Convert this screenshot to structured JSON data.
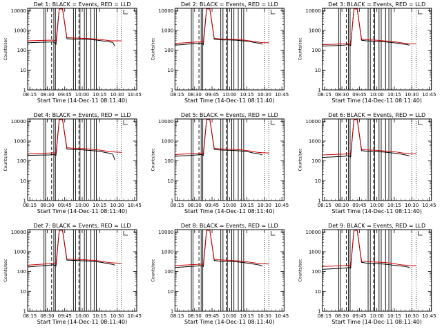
{
  "figure": {
    "background": "#ffffff",
    "colors": {
      "events": "#000000",
      "lld": "#cc0000",
      "axis": "#000000"
    }
  },
  "chart_data": [
    {
      "type": "line",
      "title": "Det 1: BLACK = Events, RED = LLD",
      "xlabel": "Start Time (14-Dec-11 08:11:40)",
      "ylabel": "Counts/sec",
      "x_ticks": [
        "08:15",
        "08:30",
        "09:45",
        "10:00",
        "10:15",
        "10:30",
        "10:45"
      ],
      "y_ticks": [
        "1",
        "10",
        "100",
        "1000",
        "10000"
      ],
      "ylim": [
        1,
        13000
      ],
      "y_scale": "log",
      "grid": false,
      "series": [
        {
          "name": "Events",
          "color": "#000000",
          "x": [
            0,
            20,
            24,
            26,
            29,
            32,
            36,
            40,
            44,
            50,
            56,
            62,
            68,
            72,
            76,
            78,
            80
          ],
          "y": [
            240,
            260,
            260,
            200,
            12000,
            12000,
            380,
            370,
            360,
            360,
            350,
            330,
            300,
            280,
            260,
            250,
            160
          ]
        },
        {
          "name": "LLD",
          "color": "#cc0000",
          "x": [
            0,
            20,
            24,
            26,
            29,
            32,
            36,
            40,
            44,
            50,
            56,
            62,
            68,
            72,
            76,
            80,
            86
          ],
          "y": [
            300,
            320,
            320,
            280,
            12000,
            12000,
            430,
            420,
            410,
            400,
            390,
            370,
            340,
            320,
            300,
            300,
            300
          ]
        }
      ]
    },
    {
      "type": "line",
      "title": "Det 2: BLACK = Events, RED = LLD",
      "xlabel": "Start Time (14-Dec-11 08:11:40)",
      "ylabel": "Counts/sec",
      "x_ticks": [
        "08:15",
        "08:30",
        "09:45",
        "10:00",
        "10:15",
        "10:30",
        "10:45"
      ],
      "y_ticks": [
        "1",
        "10",
        "100",
        "1000",
        "10000"
      ],
      "ylim": [
        1,
        13000
      ],
      "y_scale": "log",
      "grid": false,
      "series": [
        {
          "name": "Events",
          "color": "#000000",
          "x": [
            0,
            20,
            24,
            26,
            29,
            32,
            36,
            40,
            44,
            50,
            56,
            62,
            68,
            72,
            76,
            78,
            80
          ],
          "y": [
            180,
            220,
            230,
            190,
            12000,
            12000,
            360,
            340,
            330,
            330,
            320,
            300,
            280,
            250,
            230,
            220,
            200
          ]
        },
        {
          "name": "LLD",
          "color": "#cc0000",
          "x": [
            0,
            20,
            24,
            26,
            29,
            32,
            36,
            40,
            44,
            50,
            56,
            62,
            68,
            72,
            76,
            80,
            86
          ],
          "y": [
            220,
            260,
            270,
            250,
            12000,
            12000,
            400,
            380,
            370,
            360,
            350,
            330,
            300,
            280,
            260,
            240,
            240
          ]
        }
      ]
    },
    {
      "type": "line",
      "title": "Det 3: BLACK = Events, RED = LLD",
      "xlabel": "Start Time (14-Dec-11 08:11:40)",
      "ylabel": "Counts/sec",
      "x_ticks": [
        "08:15",
        "08:30",
        "09:45",
        "10:00",
        "10:15",
        "10:30",
        "10:45"
      ],
      "y_ticks": [
        "1",
        "10",
        "100",
        "1000",
        "10000"
      ],
      "ylim": [
        1,
        13000
      ],
      "y_scale": "log",
      "grid": false,
      "series": [
        {
          "name": "Events",
          "color": "#000000",
          "x": [
            0,
            20,
            24,
            26,
            29,
            32,
            36,
            40,
            44,
            50,
            56,
            62,
            68,
            72,
            76,
            78,
            80
          ],
          "y": [
            160,
            180,
            190,
            170,
            12000,
            12000,
            320,
            300,
            290,
            280,
            270,
            250,
            230,
            210,
            200,
            190,
            180
          ]
        },
        {
          "name": "LLD",
          "color": "#cc0000",
          "x": [
            0,
            20,
            24,
            26,
            29,
            32,
            36,
            40,
            44,
            50,
            56,
            62,
            68,
            72,
            76,
            80,
            86
          ],
          "y": [
            190,
            210,
            220,
            200,
            12000,
            12000,
            360,
            340,
            330,
            320,
            300,
            280,
            260,
            240,
            220,
            210,
            210
          ]
        }
      ]
    },
    {
      "type": "line",
      "title": "Det 4: BLACK = Events, RED = LLD",
      "xlabel": "Start Time (14-Dec-11 08:11:40)",
      "ylabel": "Counts/sec",
      "x_ticks": [
        "08:15",
        "08:30",
        "09:45",
        "10:00",
        "10:15",
        "10:30",
        "10:45"
      ],
      "y_ticks": [
        "1",
        "10",
        "100",
        "1000",
        "10000"
      ],
      "ylim": [
        1,
        13000
      ],
      "y_scale": "log",
      "grid": false,
      "series": [
        {
          "name": "Events",
          "color": "#000000",
          "x": [
            0,
            20,
            24,
            26,
            29,
            32,
            36,
            40,
            44,
            50,
            56,
            62,
            68,
            72,
            76,
            78,
            80
          ],
          "y": [
            190,
            200,
            210,
            190,
            12000,
            12000,
            400,
            380,
            370,
            360,
            340,
            320,
            290,
            260,
            240,
            220,
            110
          ]
        },
        {
          "name": "LLD",
          "color": "#cc0000",
          "x": [
            0,
            20,
            24,
            26,
            29,
            32,
            36,
            40,
            44,
            50,
            56,
            62,
            68,
            72,
            76,
            80,
            86
          ],
          "y": [
            230,
            250,
            260,
            240,
            12000,
            12000,
            460,
            440,
            430,
            420,
            400,
            370,
            340,
            310,
            290,
            280,
            270
          ]
        }
      ]
    },
    {
      "type": "line",
      "title": "Det 5: BLACK = Events, RED = LLD",
      "xlabel": "Start Time (14-Dec-11 08:11:40)",
      "ylabel": "Counts/sec",
      "x_ticks": [
        "08:15",
        "08:30",
        "09:45",
        "10:00",
        "10:15",
        "10:30",
        "10:45"
      ],
      "y_ticks": [
        "1",
        "10",
        "100",
        "1000",
        "10000"
      ],
      "ylim": [
        1,
        13000
      ],
      "y_scale": "log",
      "grid": false,
      "series": [
        {
          "name": "Events",
          "color": "#000000",
          "x": [
            0,
            20,
            24,
            26,
            29,
            32,
            36,
            40,
            44,
            50,
            56,
            62,
            68,
            72,
            76,
            78,
            80
          ],
          "y": [
            170,
            200,
            210,
            190,
            12000,
            12000,
            380,
            360,
            350,
            340,
            330,
            310,
            280,
            250,
            230,
            220,
            200
          ]
        },
        {
          "name": "LLD",
          "color": "#cc0000",
          "x": [
            0,
            20,
            24,
            26,
            29,
            32,
            36,
            40,
            44,
            50,
            56,
            62,
            68,
            72,
            76,
            80,
            86
          ],
          "y": [
            210,
            240,
            250,
            230,
            12000,
            12000,
            430,
            410,
            400,
            390,
            380,
            350,
            320,
            290,
            270,
            260,
            250
          ]
        }
      ]
    },
    {
      "type": "line",
      "title": "Det 6: BLACK = Events, RED = LLD",
      "xlabel": "Start Time (14-Dec-11 08:11:40)",
      "ylabel": "Counts/sec",
      "x_ticks": [
        "08:15",
        "08:30",
        "09:45",
        "10:00",
        "10:15",
        "10:30",
        "10:45"
      ],
      "y_ticks": [
        "1",
        "10",
        "100",
        "1000",
        "10000"
      ],
      "ylim": [
        1,
        13000
      ],
      "y_scale": "log",
      "grid": false,
      "series": [
        {
          "name": "Events",
          "color": "#000000",
          "x": [
            0,
            20,
            24,
            26,
            29,
            32,
            36,
            40,
            44,
            50,
            56,
            62,
            68,
            72,
            76,
            78,
            80
          ],
          "y": [
            150,
            170,
            180,
            160,
            12000,
            12000,
            330,
            310,
            300,
            290,
            280,
            260,
            240,
            220,
            200,
            190,
            180
          ]
        },
        {
          "name": "LLD",
          "color": "#cc0000",
          "x": [
            0,
            20,
            24,
            26,
            29,
            32,
            36,
            40,
            44,
            50,
            56,
            62,
            68,
            72,
            76,
            80,
            86
          ],
          "y": [
            200,
            220,
            230,
            210,
            12000,
            12000,
            380,
            360,
            350,
            340,
            320,
            300,
            280,
            260,
            240,
            230,
            230
          ]
        }
      ]
    },
    {
      "type": "line",
      "title": "Det 7: BLACK = Events, RED = LLD",
      "xlabel": "Start Time (14-Dec-11 08:11:40)",
      "ylabel": "Counts/sec",
      "x_ticks": [
        "08:15",
        "08:30",
        "09:45",
        "10:00",
        "10:15",
        "10:30",
        "10:45"
      ],
      "y_ticks": [
        "1",
        "10",
        "100",
        "1000",
        "10000"
      ],
      "ylim": [
        1,
        13000
      ],
      "y_scale": "log",
      "grid": false,
      "series": [
        {
          "name": "Events",
          "color": "#000000",
          "x": [
            0,
            20,
            24,
            26,
            29,
            32,
            36,
            40,
            44,
            50,
            56,
            62,
            68,
            72,
            76,
            78,
            80
          ],
          "y": [
            170,
            210,
            220,
            190,
            12000,
            12000,
            380,
            370,
            360,
            350,
            340,
            320,
            290,
            260,
            240,
            230,
            210
          ]
        },
        {
          "name": "LLD",
          "color": "#cc0000",
          "x": [
            0,
            20,
            24,
            26,
            29,
            32,
            36,
            40,
            44,
            50,
            56,
            62,
            68,
            72,
            76,
            80,
            86
          ],
          "y": [
            210,
            250,
            260,
            240,
            12000,
            12000,
            430,
            420,
            410,
            400,
            380,
            360,
            330,
            300,
            280,
            270,
            260
          ]
        }
      ]
    },
    {
      "type": "line",
      "title": "Det 8: BLACK = Events, RED = LLD",
      "xlabel": "Start Time (14-Dec-11 08:11:40)",
      "ylabel": "Counts/sec",
      "x_ticks": [
        "08:15",
        "08:30",
        "09:45",
        "10:00",
        "10:15",
        "10:30",
        "10:45"
      ],
      "y_ticks": [
        "1",
        "10",
        "100",
        "1000",
        "10000"
      ],
      "ylim": [
        1,
        13000
      ],
      "y_scale": "log",
      "grid": false,
      "series": [
        {
          "name": "Events",
          "color": "#000000",
          "x": [
            0,
            20,
            24,
            26,
            29,
            32,
            36,
            40,
            44,
            50,
            56,
            62,
            68,
            72,
            76,
            78,
            80
          ],
          "y": [
            160,
            190,
            200,
            180,
            12000,
            12000,
            360,
            340,
            330,
            320,
            310,
            290,
            260,
            240,
            220,
            210,
            190
          ]
        },
        {
          "name": "LLD",
          "color": "#cc0000",
          "x": [
            0,
            20,
            24,
            26,
            29,
            32,
            36,
            40,
            44,
            50,
            56,
            62,
            68,
            72,
            76,
            80,
            86
          ],
          "y": [
            200,
            230,
            240,
            220,
            12000,
            12000,
            410,
            390,
            380,
            370,
            350,
            330,
            300,
            280,
            260,
            250,
            240
          ]
        }
      ]
    },
    {
      "type": "line",
      "title": "Det 9: BLACK = Events, RED = LLD",
      "xlabel": "Start Time (14-Dec-11 08:11:40)",
      "ylabel": "Counts/sec",
      "x_ticks": [
        "08:15",
        "08:30",
        "09:45",
        "10:00",
        "10:15",
        "10:30",
        "10:45"
      ],
      "y_ticks": [
        "1",
        "10",
        "100",
        "1000",
        "10000"
      ],
      "ylim": [
        1,
        13000
      ],
      "y_scale": "log",
      "grid": false,
      "series": [
        {
          "name": "Events",
          "color": "#000000",
          "x": [
            0,
            20,
            24,
            26,
            29,
            32,
            36,
            40,
            44,
            50,
            56,
            62,
            68,
            72,
            76,
            78,
            80
          ],
          "y": [
            130,
            150,
            160,
            150,
            12000,
            12000,
            290,
            270,
            260,
            250,
            240,
            220,
            200,
            190,
            180,
            170,
            160
          ]
        },
        {
          "name": "LLD",
          "color": "#cc0000",
          "x": [
            0,
            20,
            24,
            26,
            29,
            32,
            36,
            40,
            44,
            50,
            56,
            62,
            68,
            72,
            76,
            80,
            86
          ],
          "y": [
            180,
            200,
            210,
            190,
            12000,
            12000,
            340,
            320,
            310,
            300,
            290,
            270,
            240,
            220,
            210,
            200,
            200
          ]
        }
      ]
    }
  ]
}
